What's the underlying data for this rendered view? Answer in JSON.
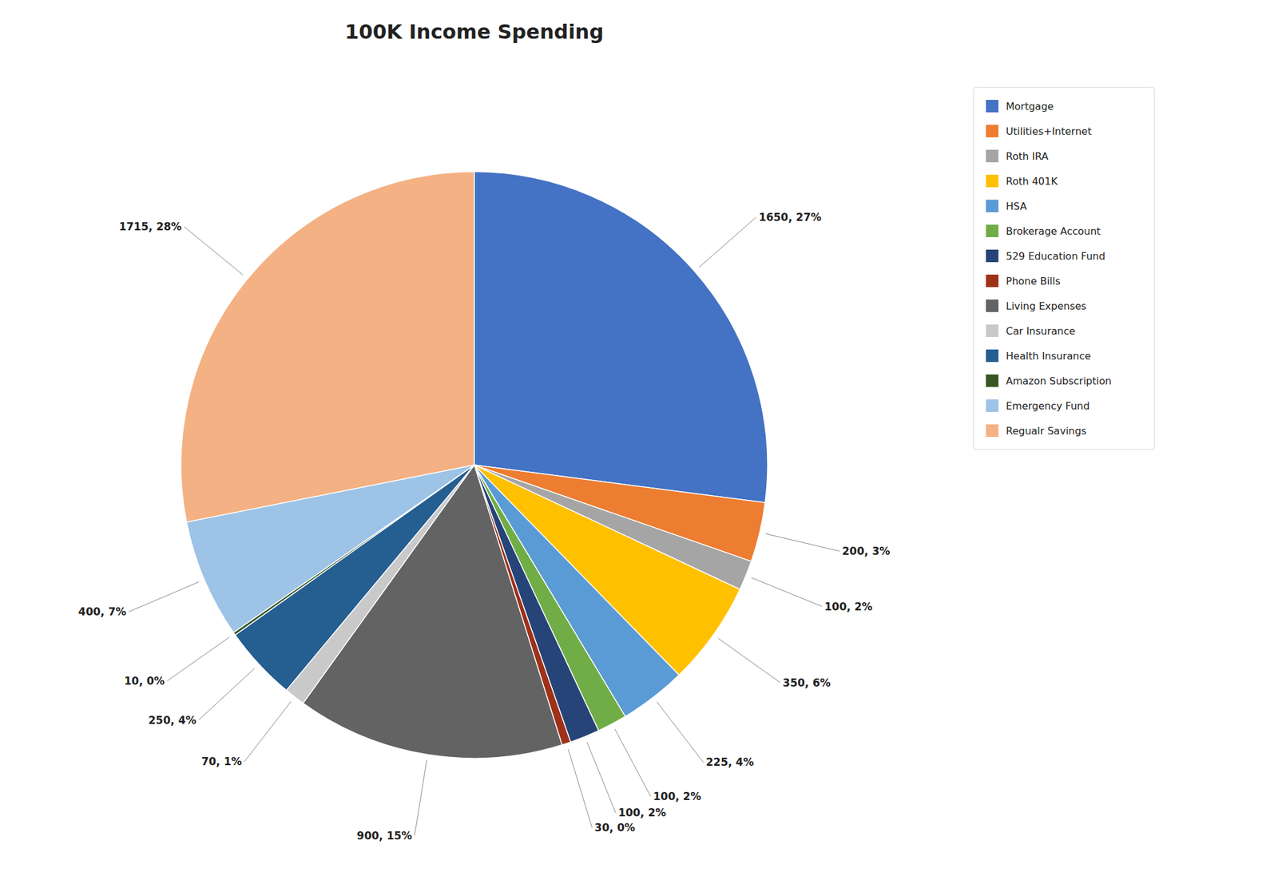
{
  "chart_data": {
    "type": "pie",
    "title": "100K Income Spending",
    "categories": [
      "Mortgage",
      "Utilities+Internet",
      "Roth IRA",
      "Roth 401K",
      "HSA",
      "Brokerage Account",
      "529 Education Fund",
      "Phone Bills",
      "Living Expenses",
      "Car Insurance",
      "Health Insurance",
      "Amazon Subscription",
      "Emergency Fund",
      "Regualr Savings"
    ],
    "values": [
      1650,
      200,
      100,
      350,
      225,
      100,
      100,
      30,
      900,
      70,
      250,
      10,
      400,
      1715
    ],
    "colors": [
      "#4472C4",
      "#ED7D31",
      "#A5A5A5",
      "#FFC000",
      "#5B9BD5",
      "#70AD47",
      "#264478",
      "#9E3118",
      "#636363",
      "#C9C9C9",
      "#255E91",
      "#375623",
      "#9DC3E6",
      "#F4B183"
    ],
    "data_labels": true,
    "value_labels": [
      "1650, 27%",
      "200, 3%",
      "100, 2%",
      "350, 6%",
      "225, 4%",
      "100, 2%",
      "100, 2%",
      "30, 0%",
      "900, 15%",
      "70, 1%",
      "250, 4%",
      "10, 0%",
      "400, 7%",
      "1715, 28%"
    ],
    "legend": "right"
  }
}
